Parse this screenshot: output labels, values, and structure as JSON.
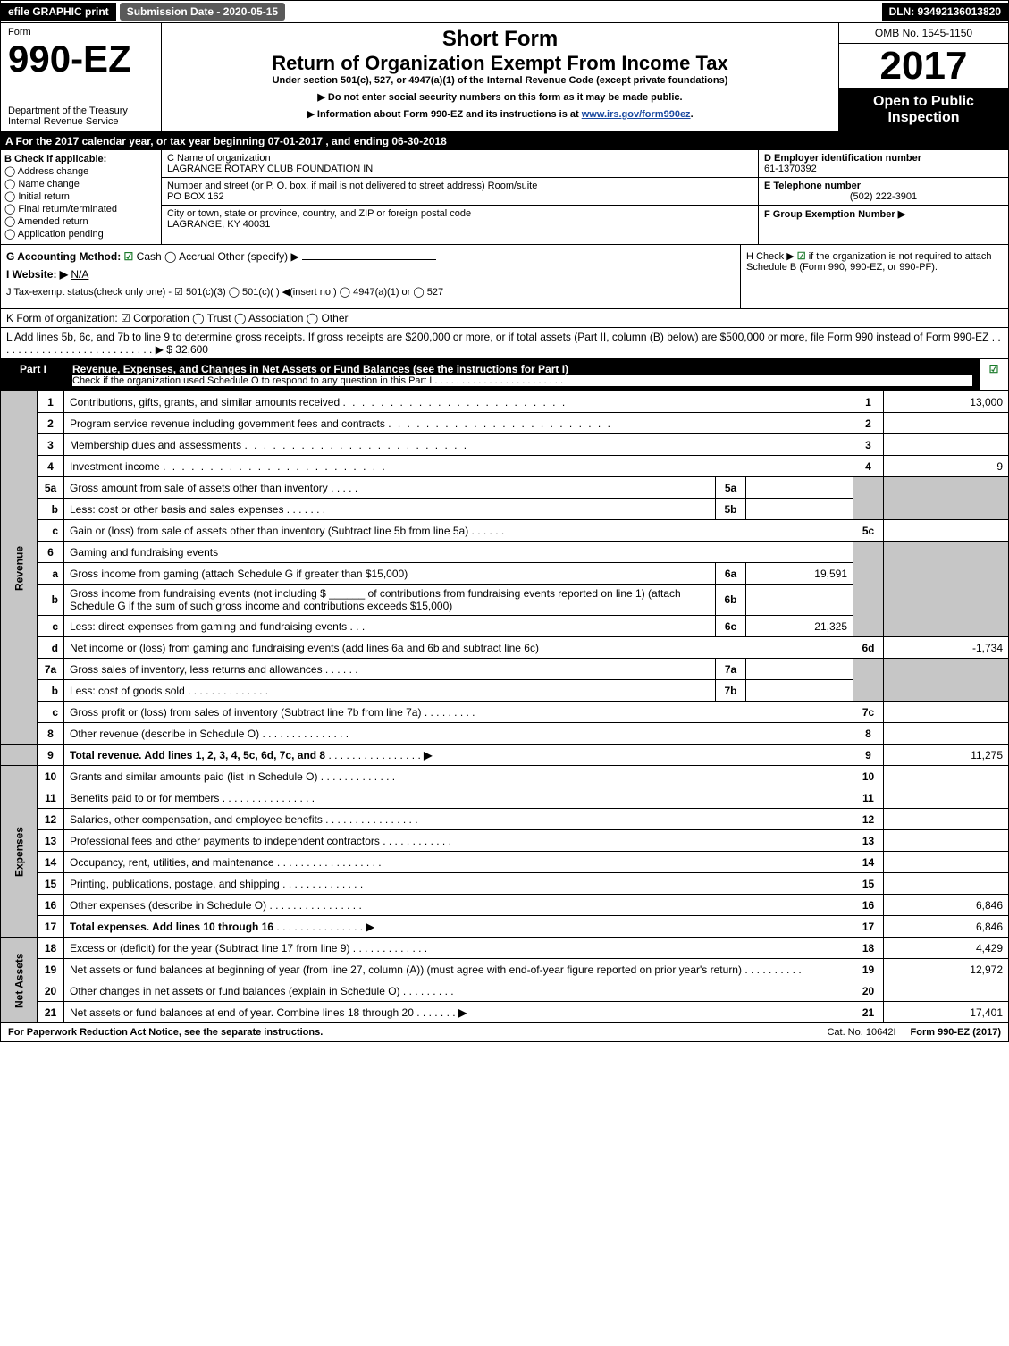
{
  "topbar": {
    "efile": "efile GRAPHIC print",
    "submission": "Submission Date - 2020-05-15",
    "dln": "DLN: 93492136013820"
  },
  "header": {
    "form_word": "Form",
    "form_num": "990-EZ",
    "short_form": "Short Form",
    "return_line": "Return of Organization Exempt From Income Tax",
    "under": "Under section 501(c), 527, or 4947(a)(1) of the Internal Revenue Code (except private foundations)",
    "arrow1": "▶ Do not enter social security numbers on this form as it may be made public.",
    "arrow2_pre": "▶ Information about Form 990-EZ and its instructions is at ",
    "arrow2_link": "www.irs.gov/form990ez",
    "arrow2_post": ".",
    "dept": "Department of the Treasury",
    "irs": "Internal Revenue Service",
    "omb": "OMB No. 1545-1150",
    "year": "2017",
    "open1": "Open to Public",
    "open2": "Inspection"
  },
  "rowA": "A  For the 2017 calendar year, or tax year beginning 07-01-2017           , and ending 06-30-2018",
  "colB": {
    "title": "B  Check if applicable:",
    "o1": "Address change",
    "o2": "Name change",
    "o3": "Initial return",
    "o4": "Final return/terminated",
    "o5": "Amended return",
    "o6": "Application pending"
  },
  "colC": {
    "c_label": "C Name of organization",
    "c_val": "LAGRANGE ROTARY CLUB FOUNDATION IN",
    "addr_label": "Number and street (or P. O. box, if mail is not delivered to street address)    Room/suite",
    "addr_val": "PO BOX 162",
    "city_label": "City or town, state or province, country, and ZIP or foreign postal code",
    "city_val": "LAGRANGE, KY  40031"
  },
  "colDE": {
    "d_label": "D Employer identification number",
    "d_val": "61-1370392",
    "e_label": "E Telephone number",
    "e_val": "(502) 222-3901",
    "f_label": "F Group Exemption Number  ▶"
  },
  "rowG": {
    "g": "G Accounting Method: ",
    "g_cash": " Cash  ",
    "g_accrual": " Accrual   Other (specify) ▶",
    "i_label": "I Website: ▶",
    "i_val": "N/A",
    "j": "J Tax-exempt status(check only one) - ☑ 501(c)(3) ◯ 501(c)(  ) ◀(insert no.) ◯ 4947(a)(1) or ◯ 527"
  },
  "rowH": {
    "h_pre": "H  Check ▶ ",
    "h_post": " if the organization is not required to attach Schedule B (Form 990, 990-EZ, or 990-PF)."
  },
  "rowK": "K Form of organization:  ☑ Corporation  ◯ Trust  ◯ Association  ◯ Other",
  "rowL": {
    "text": "L Add lines 5b, 6c, and 7b to line 9 to determine gross receipts. If gross receipts are $200,000 or more, or if total assets (Part II, column (B) below) are $500,000 or more, file Form 990 instead of Form 990-EZ  . . . . . . . . . . . . . . . . . . . . . . . . . . .  ▶ $ ",
    "val": "32,600"
  },
  "part1": {
    "label": "Part I",
    "title": "Revenue, Expenses, and Changes in Net Assets or Fund Balances (see the instructions for Part I)",
    "sub": "Check if the organization used Schedule O to respond to any question in this Part I . . . . . . . . . . . . . . . . . . . . . . . ."
  },
  "sides": {
    "rev": "Revenue",
    "exp": "Expenses",
    "net": "Net Assets"
  },
  "lines": {
    "l1": {
      "n": "1",
      "d": "Contributions, gifts, grants, and similar amounts received",
      "box": "1",
      "v": "13,000"
    },
    "l2": {
      "n": "2",
      "d": "Program service revenue including government fees and contracts",
      "box": "2",
      "v": ""
    },
    "l3": {
      "n": "3",
      "d": "Membership dues and assessments",
      "box": "3",
      "v": ""
    },
    "l4": {
      "n": "4",
      "d": "Investment income",
      "box": "4",
      "v": "9"
    },
    "l5a": {
      "n": "5a",
      "d": "Gross amount from sale of assets other than inventory",
      "mb": "5a",
      "mv": ""
    },
    "l5b": {
      "n": "b",
      "d": "Less: cost or other basis and sales expenses",
      "mb": "5b",
      "mv": ""
    },
    "l5c": {
      "n": "c",
      "d": "Gain or (loss) from sale of assets other than inventory (Subtract line 5b from line 5a)",
      "box": "5c",
      "v": ""
    },
    "l6": {
      "n": "6",
      "d": "Gaming and fundraising events"
    },
    "l6a": {
      "n": "a",
      "d": "Gross income from gaming (attach Schedule G if greater than $15,000)",
      "mb": "6a",
      "mv": "19,591"
    },
    "l6b": {
      "n": "b",
      "d": "Gross income from fundraising events (not including $ ______ of contributions from fundraising events reported on line 1) (attach Schedule G if the sum of such gross income and contributions exceeds $15,000)",
      "mb": "6b",
      "mv": ""
    },
    "l6c": {
      "n": "c",
      "d": "Less: direct expenses from gaming and fundraising events",
      "mb": "6c",
      "mv": "21,325"
    },
    "l6d": {
      "n": "d",
      "d": "Net income or (loss) from gaming and fundraising events (add lines 6a and 6b and subtract line 6c)",
      "box": "6d",
      "v": "-1,734"
    },
    "l7a": {
      "n": "7a",
      "d": "Gross sales of inventory, less returns and allowances",
      "mb": "7a",
      "mv": ""
    },
    "l7b": {
      "n": "b",
      "d": "Less: cost of goods sold",
      "mb": "7b",
      "mv": ""
    },
    "l7c": {
      "n": "c",
      "d": "Gross profit or (loss) from sales of inventory (Subtract line 7b from line 7a)",
      "box": "7c",
      "v": ""
    },
    "l8": {
      "n": "8",
      "d": "Other revenue (describe in Schedule O)",
      "box": "8",
      "v": ""
    },
    "l9": {
      "n": "9",
      "d": "Total revenue. Add lines 1, 2, 3, 4, 5c, 6d, 7c, and 8",
      "box": "9",
      "v": "11,275",
      "arrow": "▶"
    },
    "l10": {
      "n": "10",
      "d": "Grants and similar amounts paid (list in Schedule O)",
      "box": "10",
      "v": ""
    },
    "l11": {
      "n": "11",
      "d": "Benefits paid to or for members",
      "box": "11",
      "v": ""
    },
    "l12": {
      "n": "12",
      "d": "Salaries, other compensation, and employee benefits",
      "box": "12",
      "v": ""
    },
    "l13": {
      "n": "13",
      "d": "Professional fees and other payments to independent contractors",
      "box": "13",
      "v": ""
    },
    "l14": {
      "n": "14",
      "d": "Occupancy, rent, utilities, and maintenance",
      "box": "14",
      "v": ""
    },
    "l15": {
      "n": "15",
      "d": "Printing, publications, postage, and shipping",
      "box": "15",
      "v": ""
    },
    "l16": {
      "n": "16",
      "d": "Other expenses (describe in Schedule O)",
      "box": "16",
      "v": "6,846"
    },
    "l17": {
      "n": "17",
      "d": "Total expenses. Add lines 10 through 16",
      "box": "17",
      "v": "6,846",
      "arrow": "▶"
    },
    "l18": {
      "n": "18",
      "d": "Excess or (deficit) for the year (Subtract line 17 from line 9)",
      "box": "18",
      "v": "4,429"
    },
    "l19": {
      "n": "19",
      "d": "Net assets or fund balances at beginning of year (from line 27, column (A)) (must agree with end-of-year figure reported on prior year's return)",
      "box": "19",
      "v": "12,972"
    },
    "l20": {
      "n": "20",
      "d": "Other changes in net assets or fund balances (explain in Schedule O)",
      "box": "20",
      "v": ""
    },
    "l21": {
      "n": "21",
      "d": "Net assets or fund balances at end of year. Combine lines 18 through 20",
      "box": "21",
      "v": "17,401",
      "arrow": "▶"
    }
  },
  "footer": {
    "left": "For Paperwork Reduction Act Notice, see the separate instructions.",
    "mid": "Cat. No. 10642I",
    "right": "Form 990-EZ (2017)"
  }
}
